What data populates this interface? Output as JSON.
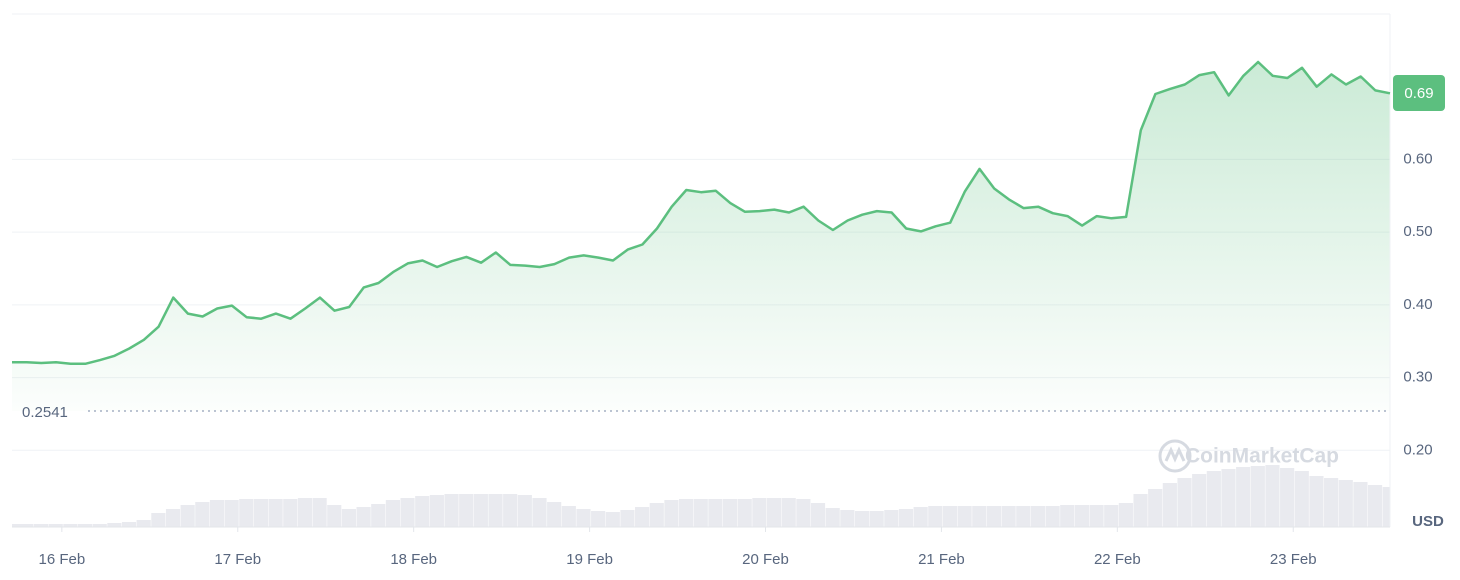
{
  "chart_data": {
    "type": "line",
    "color": "#5cbf7f",
    "volume_color": "#e9eaef",
    "unit": "USD",
    "watermark": "CoinMarketCap",
    "current_price": 0.69,
    "baseline": 0.2541,
    "xlim": [
      0,
      94
    ],
    "xticks": [
      {
        "value": 3.4,
        "label": "16 Feb"
      },
      {
        "value": 15.4,
        "label": "17 Feb"
      },
      {
        "value": 27.4,
        "label": "18 Feb"
      },
      {
        "value": 39.4,
        "label": "19 Feb"
      },
      {
        "value": 51.4,
        "label": "20 Feb"
      },
      {
        "value": 63.4,
        "label": "21 Feb"
      },
      {
        "value": 75.4,
        "label": "22 Feb"
      },
      {
        "value": 87.4,
        "label": "23 Feb"
      }
    ],
    "ylim": [
      0.0945,
      0.8
    ],
    "yticks": [
      {
        "value": 0.2,
        "label": "0.20"
      },
      {
        "value": 0.3,
        "label": "0.30"
      },
      {
        "value": 0.4,
        "label": "0.40"
      },
      {
        "value": 0.5,
        "label": "0.50"
      },
      {
        "value": 0.6,
        "label": "0.60"
      }
    ],
    "grid": true,
    "values": [
      0.321,
      0.321,
      0.32,
      0.321,
      0.319,
      0.319,
      0.324,
      0.33,
      0.34,
      0.352,
      0.37,
      0.41,
      0.388,
      0.384,
      0.395,
      0.399,
      0.383,
      0.381,
      0.388,
      0.381,
      0.395,
      0.41,
      0.392,
      0.397,
      0.424,
      0.43,
      0.445,
      0.457,
      0.461,
      0.452,
      0.46,
      0.466,
      0.458,
      0.472,
      0.455,
      0.454,
      0.452,
      0.456,
      0.465,
      0.468,
      0.465,
      0.461,
      0.476,
      0.483,
      0.505,
      0.535,
      0.558,
      0.555,
      0.557,
      0.54,
      0.528,
      0.529,
      0.531,
      0.527,
      0.535,
      0.516,
      0.503,
      0.516,
      0.524,
      0.529,
      0.527,
      0.505,
      0.501,
      0.508,
      0.513,
      0.556,
      0.587,
      0.56,
      0.545,
      0.533,
      0.535,
      0.526,
      0.522,
      0.509,
      0.522,
      0.519,
      0.521,
      0.64,
      0.69,
      0.697,
      0.703,
      0.716,
      0.72,
      0.688,
      0.715,
      0.734,
      0.715,
      0.712,
      0.726,
      0.7,
      0.717,
      0.703,
      0.714,
      0.695,
      0.691
    ],
    "volume_ylim": [
      0,
      100
    ],
    "volume": [
      3,
      3,
      3,
      3,
      3,
      3,
      3,
      4,
      5,
      7,
      14,
      18,
      22,
      25,
      27,
      27,
      28,
      28,
      28,
      28,
      29,
      29,
      22,
      18,
      20,
      23,
      27,
      29,
      31,
      32,
      33,
      33,
      33,
      33,
      33,
      32,
      29,
      25,
      21,
      18,
      16,
      15,
      17,
      20,
      24,
      27,
      28,
      28,
      28,
      28,
      28,
      29,
      29,
      29,
      28,
      24,
      19,
      17,
      16,
      16,
      17,
      18,
      20,
      21,
      21,
      21,
      21,
      21,
      21,
      21,
      21,
      21,
      22,
      22,
      22,
      22,
      24,
      33,
      38,
      44,
      49,
      53,
      56,
      58,
      60,
      61,
      62,
      59,
      56,
      51,
      49,
      47,
      45,
      42,
      40
    ]
  }
}
